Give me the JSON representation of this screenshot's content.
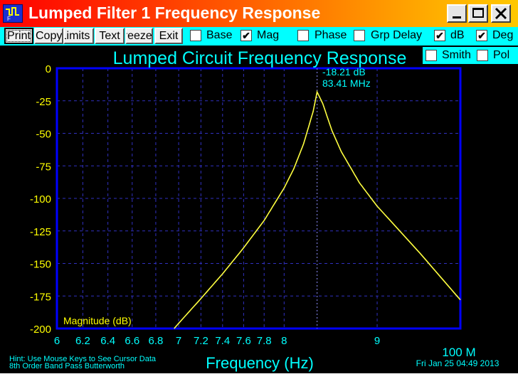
{
  "window": {
    "title": "Lumped Filter 1 Frequency Response",
    "controls": [
      "minimize",
      "maximize",
      "close"
    ]
  },
  "toolbar": {
    "buttons": [
      {
        "label": "Print"
      },
      {
        "label": "Copy"
      },
      {
        "label": "Limits"
      },
      {
        "label": "Text"
      },
      {
        "label": "Freeze"
      },
      {
        "label": "Exit"
      }
    ],
    "checkboxes": [
      {
        "label": "Base",
        "checked": false
      },
      {
        "label": "Mag",
        "checked": true
      },
      {
        "label": "Phase",
        "checked": false
      },
      {
        "label": "Grp Delay",
        "checked": false
      },
      {
        "label": "dB",
        "checked": true
      },
      {
        "label": "Deg",
        "checked": true
      },
      {
        "label": "Smith",
        "checked": false
      },
      {
        "label": "Pol",
        "checked": false
      }
    ]
  },
  "plot": {
    "hint": "Hint: Use Mouse Keys to See Cursor Data",
    "subtitle": "8th Order Band Pass Butterworth",
    "timestamp": "Fri Jan 25 04:49 2013",
    "multiplier": "100 M",
    "cursor": {
      "value": "-18.21 dB",
      "freq": "83.41 MHz"
    },
    "colors": {
      "background": "#000000",
      "frame": "#0000ff",
      "grid": "#3030c0",
      "trace": "#ffff40",
      "text": "#00ffff",
      "tick": "#ffff00"
    }
  },
  "chart_data": {
    "type": "line",
    "title": "Lumped Circuit Frequency Response",
    "xlabel": "Frequency (Hz)",
    "ylabel": "",
    "series_label": "Magnitude (dB)",
    "xscale": "log",
    "xlim": [
      6,
      10
    ],
    "ylim": [
      -200,
      0
    ],
    "xticks": [
      "6",
      "6.2",
      "6.4",
      "6.6",
      "6.8",
      "7",
      "7.2",
      "7.4",
      "7.6",
      "7.8",
      "8",
      "9"
    ],
    "yticks": [
      "0",
      "-25",
      "-50",
      "-75",
      "-100",
      "-125",
      "-150",
      "-175",
      "-200"
    ],
    "grid": true,
    "series": [
      {
        "x": [
          6.5,
          6.96,
          7.0,
          7.2,
          7.4,
          7.6,
          7.8,
          8.0,
          8.1,
          8.2,
          8.3,
          8.341,
          8.4,
          8.5,
          8.6,
          8.8,
          9.0,
          9.5,
          10.0
        ],
        "y": [
          -240,
          -200,
          -196,
          -177,
          -158,
          -138,
          -117,
          -92,
          -77,
          -58,
          -33,
          -18.21,
          -27,
          -48,
          -64,
          -88,
          -106,
          -142,
          -178
        ]
      }
    ]
  }
}
